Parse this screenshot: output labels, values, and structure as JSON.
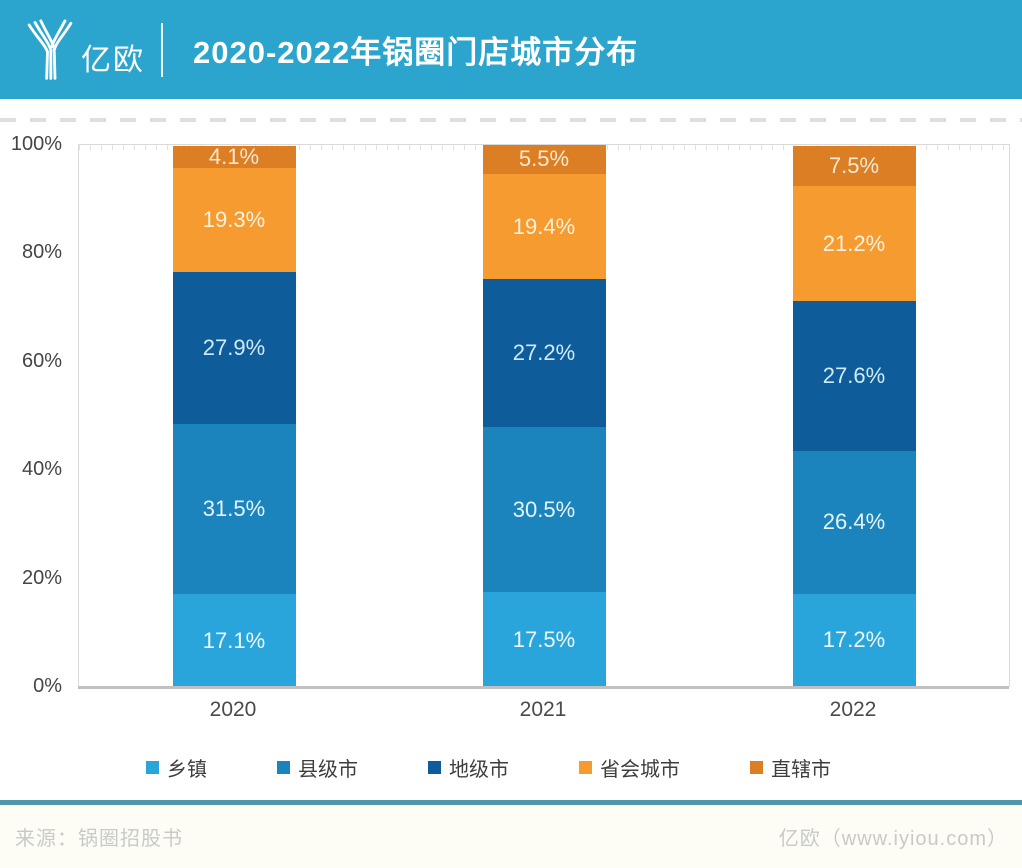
{
  "header": {
    "logo_text": "亿欧",
    "title": "2020-2022年锅圈门店城市分布"
  },
  "footer": {
    "source": "来源：锅圈招股书",
    "credit": "亿欧（www.iyiou.com）"
  },
  "colors": {
    "header_bg": "#2BA5CE",
    "footer_line": "#4E96A9",
    "plot_border": "#DADADA",
    "axis_line": "#C0C0C0"
  },
  "chart_data": {
    "type": "bar",
    "stacked": true,
    "title": "2020-2022年锅圈门店城市分布",
    "categories": [
      "2020",
      "2021",
      "2022"
    ],
    "series": [
      {
        "name": "乡镇",
        "color": "#29A5DC",
        "label_color": "#EDF8FE",
        "values": [
          17.1,
          17.5,
          17.2
        ]
      },
      {
        "name": "县级市",
        "color": "#1B84BC",
        "label_color": "#E3F4FC",
        "values": [
          31.5,
          30.5,
          26.4
        ]
      },
      {
        "name": "地级市",
        "color": "#0F5C9B",
        "label_color": "#CFEBF8",
        "values": [
          27.9,
          27.2,
          27.6
        ]
      },
      {
        "name": "省会城市",
        "color": "#F59B2F",
        "label_color": "#FCF1DC",
        "values": [
          19.3,
          19.4,
          21.2
        ]
      },
      {
        "name": "直辖市",
        "color": "#DC7E23",
        "label_color": "#F8E9D3",
        "values": [
          4.1,
          5.5,
          7.5
        ]
      }
    ],
    "value_suffix": "%",
    "yticks": [
      "0%",
      "20%",
      "40%",
      "60%",
      "80%",
      "100%"
    ],
    "ylim": [
      0,
      100
    ],
    "grid": false,
    "legend_position": "bottom"
  }
}
